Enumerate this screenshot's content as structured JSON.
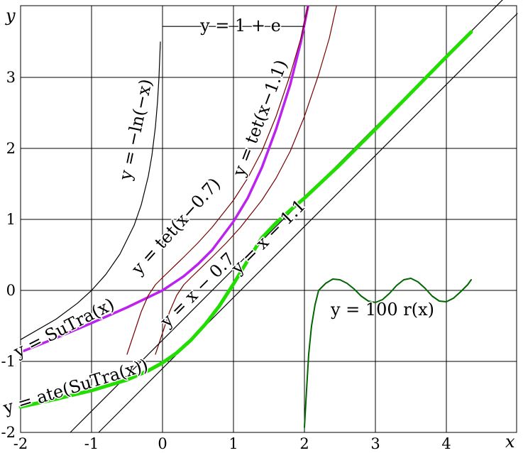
{
  "chart_data": {
    "type": "line",
    "title": "",
    "xlabel": "x",
    "ylabel": "y",
    "xlim": [
      -2,
      5
    ],
    "ylim": [
      -2,
      4
    ],
    "grid": true,
    "x_ticks": [
      "-2",
      "-1",
      "0",
      "1",
      "2",
      "3",
      "4"
    ],
    "y_ticks": [
      "-2",
      "-1",
      "0",
      "1",
      "2",
      "3"
    ],
    "colors": {
      "purple": "#bb22ee",
      "green": "#22dd00",
      "darkgreen": "#006600",
      "darkred": "#770000",
      "black": "#000000"
    },
    "series": [
      {
        "label": "y = −ln(−x)",
        "color": "black",
        "width": 1.2,
        "points": [
          [
            -2,
            -0.693
          ],
          [
            -1.5,
            -0.405
          ],
          [
            -1.2,
            -0.182
          ],
          [
            -1,
            0
          ],
          [
            -0.8,
            0.223
          ],
          [
            -0.6,
            0.511
          ],
          [
            -0.4,
            0.916
          ],
          [
            -0.3,
            1.204
          ],
          [
            -0.2,
            1.609
          ],
          [
            -0.15,
            1.897
          ],
          [
            -0.1,
            2.303
          ],
          [
            -0.07,
            2.659
          ],
          [
            -0.05,
            2.996
          ],
          [
            -0.03,
            3.5
          ]
        ]
      },
      {
        "label": "y = SuTra(x)",
        "color": "purple",
        "width": 3.5,
        "points": [
          [
            -2,
            -0.87
          ],
          [
            -1.5,
            -0.67
          ],
          [
            -1,
            -0.46
          ],
          [
            -0.5,
            -0.24
          ],
          [
            0,
            0
          ],
          [
            0.3,
            0.2
          ],
          [
            0.5,
            0.37
          ],
          [
            0.7,
            0.57
          ],
          [
            1,
            0.97
          ],
          [
            1.2,
            1.3
          ],
          [
            1.4,
            1.73
          ],
          [
            1.6,
            2.27
          ],
          [
            1.8,
            2.9
          ],
          [
            1.95,
            3.5
          ],
          [
            2.05,
            4.0
          ]
        ]
      },
      {
        "label": "y = tet(x − 0.7)",
        "color": "darkred",
        "width": 1.2,
        "points": [
          [
            -0.5,
            -0.9
          ],
          [
            -0.4,
            -0.6
          ],
          [
            -0.3,
            -0.3
          ],
          [
            -0.2,
            -0.07
          ],
          [
            -0.1,
            0.08
          ],
          [
            0,
            0.18
          ],
          [
            0.3,
            0.47
          ],
          [
            0.5,
            0.67
          ],
          [
            0.7,
            0.89
          ],
          [
            1,
            1.27
          ],
          [
            1.2,
            1.58
          ],
          [
            1.4,
            1.96
          ],
          [
            1.6,
            2.45
          ],
          [
            1.8,
            3.04
          ],
          [
            1.95,
            3.55
          ],
          [
            2.05,
            4.0
          ]
        ]
      },
      {
        "label": "y = tet(x − 1.1)",
        "color": "darkred",
        "width": 1.2,
        "points": [
          [
            -0.1,
            -0.9
          ],
          [
            0,
            -0.6
          ],
          [
            0.1,
            -0.3
          ],
          [
            0.2,
            -0.07
          ],
          [
            0.3,
            0.08
          ],
          [
            0.4,
            0.18
          ],
          [
            0.7,
            0.47
          ],
          [
            0.9,
            0.67
          ],
          [
            1.1,
            0.89
          ],
          [
            1.4,
            1.27
          ],
          [
            1.6,
            1.58
          ],
          [
            1.8,
            1.96
          ],
          [
            2.0,
            2.45
          ],
          [
            2.2,
            3.04
          ],
          [
            2.35,
            3.55
          ],
          [
            2.45,
            4.0
          ]
        ]
      },
      {
        "label": "y = x − 0.7",
        "color": "black",
        "width": 1.2,
        "points": [
          [
            -1.3,
            -2
          ],
          [
            4.9,
            4.2
          ]
        ]
      },
      {
        "label": "y = x − 1.1",
        "color": "black",
        "width": 1.2,
        "points": [
          [
            -0.9,
            -2
          ],
          [
            5.0,
            3.9
          ]
        ]
      },
      {
        "label": "y = ate(SuTra(x))",
        "color": "green",
        "width": 5,
        "points": [
          [
            -2,
            -1.64
          ],
          [
            -1.5,
            -1.53
          ],
          [
            -1,
            -1.41
          ],
          [
            -0.5,
            -1.26
          ],
          [
            -0.2,
            -1.13
          ],
          [
            0,
            -1.02
          ],
          [
            0.2,
            -0.88
          ],
          [
            0.4,
            -0.7
          ],
          [
            0.6,
            -0.48
          ],
          [
            0.8,
            -0.22
          ],
          [
            1,
            0.09
          ],
          [
            1.2,
            0.42
          ],
          [
            1.4,
            0.74
          ],
          [
            1.6,
            0.95
          ],
          [
            1.8,
            1.13
          ],
          [
            2,
            1.3
          ],
          [
            2.5,
            1.77
          ],
          [
            3,
            2.27
          ],
          [
            3.5,
            2.78
          ],
          [
            4,
            3.29
          ],
          [
            4.35,
            3.64
          ]
        ]
      },
      {
        "label": "y = 100 r(x)",
        "color": "darkgreen",
        "width": 2,
        "points": [
          [
            2,
            -1.93
          ],
          [
            2.03,
            -1.4
          ],
          [
            2.06,
            -0.9
          ],
          [
            2.1,
            -0.5
          ],
          [
            2.15,
            -0.2
          ],
          [
            2.2,
            0.0
          ],
          [
            2.3,
            0.1
          ],
          [
            2.4,
            0.16
          ],
          [
            2.5,
            0.15
          ],
          [
            2.6,
            0.1
          ],
          [
            2.7,
            0.02
          ],
          [
            2.8,
            -0.08
          ],
          [
            2.9,
            -0.15
          ],
          [
            3.0,
            -0.17
          ],
          [
            3.1,
            -0.13
          ],
          [
            3.2,
            -0.04
          ],
          [
            3.3,
            0.07
          ],
          [
            3.4,
            0.15
          ],
          [
            3.5,
            0.17
          ],
          [
            3.6,
            0.12
          ],
          [
            3.7,
            0.03
          ],
          [
            3.8,
            -0.08
          ],
          [
            3.9,
            -0.15
          ],
          [
            4.0,
            -0.16
          ],
          [
            4.1,
            -0.11
          ],
          [
            4.2,
            -0.02
          ],
          [
            4.3,
            0.08
          ],
          [
            4.35,
            0.15
          ]
        ]
      },
      {
        "label": "y = 1 + e",
        "color": "black",
        "width": 1.2,
        "points": [
          [
            0,
            3.718
          ],
          [
            2,
            3.718
          ]
        ]
      }
    ],
    "annotations": [
      {
        "text": "y = 1 + e",
        "x": 1.1,
        "y": 3.65,
        "rotate": 0,
        "color": "black"
      },
      {
        "text": "y = −ln(−x)",
        "x": -0.3,
        "y": 2.25,
        "rotate": -78,
        "color": "black"
      },
      {
        "text": "y = tet(x−1.1)",
        "x": 1.45,
        "y": 2.4,
        "rotate": -69,
        "color": "black"
      },
      {
        "text": "y = tet(x−0.7)",
        "x": 0.25,
        "y": 0.85,
        "rotate": -48,
        "color": "black"
      },
      {
        "text": "y = SuTra(x)",
        "x": -1.35,
        "y": -0.6,
        "rotate": -27,
        "color": "black"
      },
      {
        "text": "y = x − 0.7",
        "x": 0.55,
        "y": -0.05,
        "rotate": -45,
        "color": "black"
      },
      {
        "text": "y = x − 1.1",
        "x": 1.55,
        "y": 0.7,
        "rotate": -45,
        "color": "black"
      },
      {
        "text": "y = ate(SuTra(x))",
        "x": -1.2,
        "y": -1.43,
        "rotate": -17,
        "color": "black"
      },
      {
        "text": "y = 100 r(x)",
        "x": 3.1,
        "y": -0.35,
        "rotate": 0,
        "color": "black"
      }
    ]
  }
}
